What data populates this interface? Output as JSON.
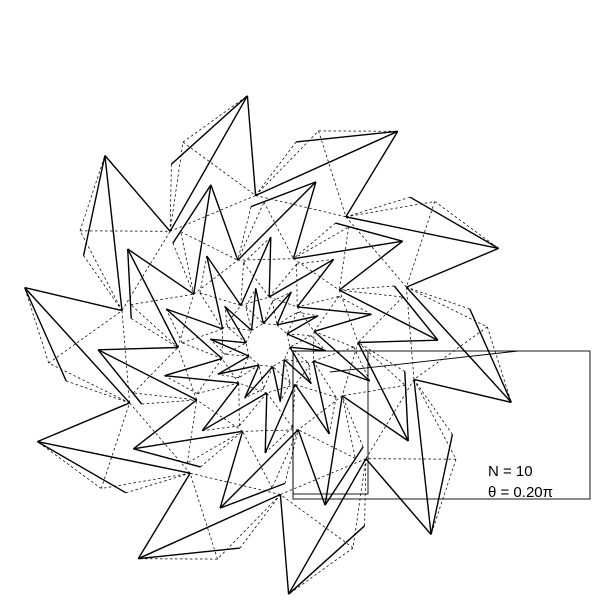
{
  "figure": {
    "n_label": "N = 10",
    "theta_label": "θ = 0.20π"
  },
  "pattern": {
    "rotational_order": 10,
    "layers": 4,
    "twist_fraction_of_pi": 0.2,
    "line_color": "#000000",
    "background_color": "#ffffff",
    "solid_line_meaning": "fold",
    "dashed_line_meaning": "crease"
  }
}
